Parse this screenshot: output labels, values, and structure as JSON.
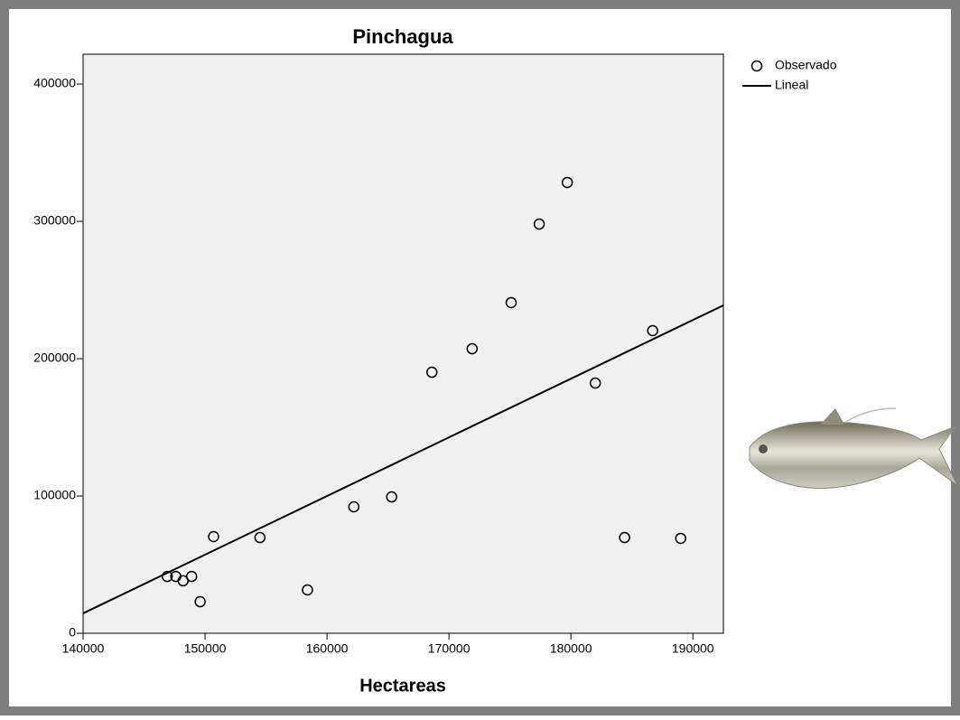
{
  "chart_data": {
    "type": "scatter",
    "title": "Pinchagua",
    "x_label": "Hectareas",
    "xlim": [
      140000,
      192500
    ],
    "ylim": [
      0,
      421700
    ],
    "xticks": [
      140000,
      150000,
      160000,
      170000,
      180000,
      190000
    ],
    "yticks": [
      0,
      100000,
      200000,
      300000,
      400000
    ],
    "legend": "top-right",
    "series": [
      {
        "name": "Observado",
        "type": "scatter",
        "color": "#000000",
        "x": [
          146900,
          147600,
          148200,
          148900,
          149600,
          150700,
          154500,
          158400,
          162200,
          165300,
          168600,
          171900,
          175100,
          177400,
          179700,
          182000,
          184400,
          186700,
          189000
        ],
        "values": [
          41400,
          41400,
          38200,
          41400,
          23000,
          70400,
          69700,
          31600,
          92100,
          99300,
          190100,
          207200,
          240800,
          298000,
          328300,
          182200,
          69700,
          220400,
          69100
        ]
      },
      {
        "name": "Lineal",
        "type": "line",
        "color": "#000000",
        "x": [
          140000,
          192500
        ],
        "values": [
          14500,
          238800
        ]
      }
    ]
  }
}
